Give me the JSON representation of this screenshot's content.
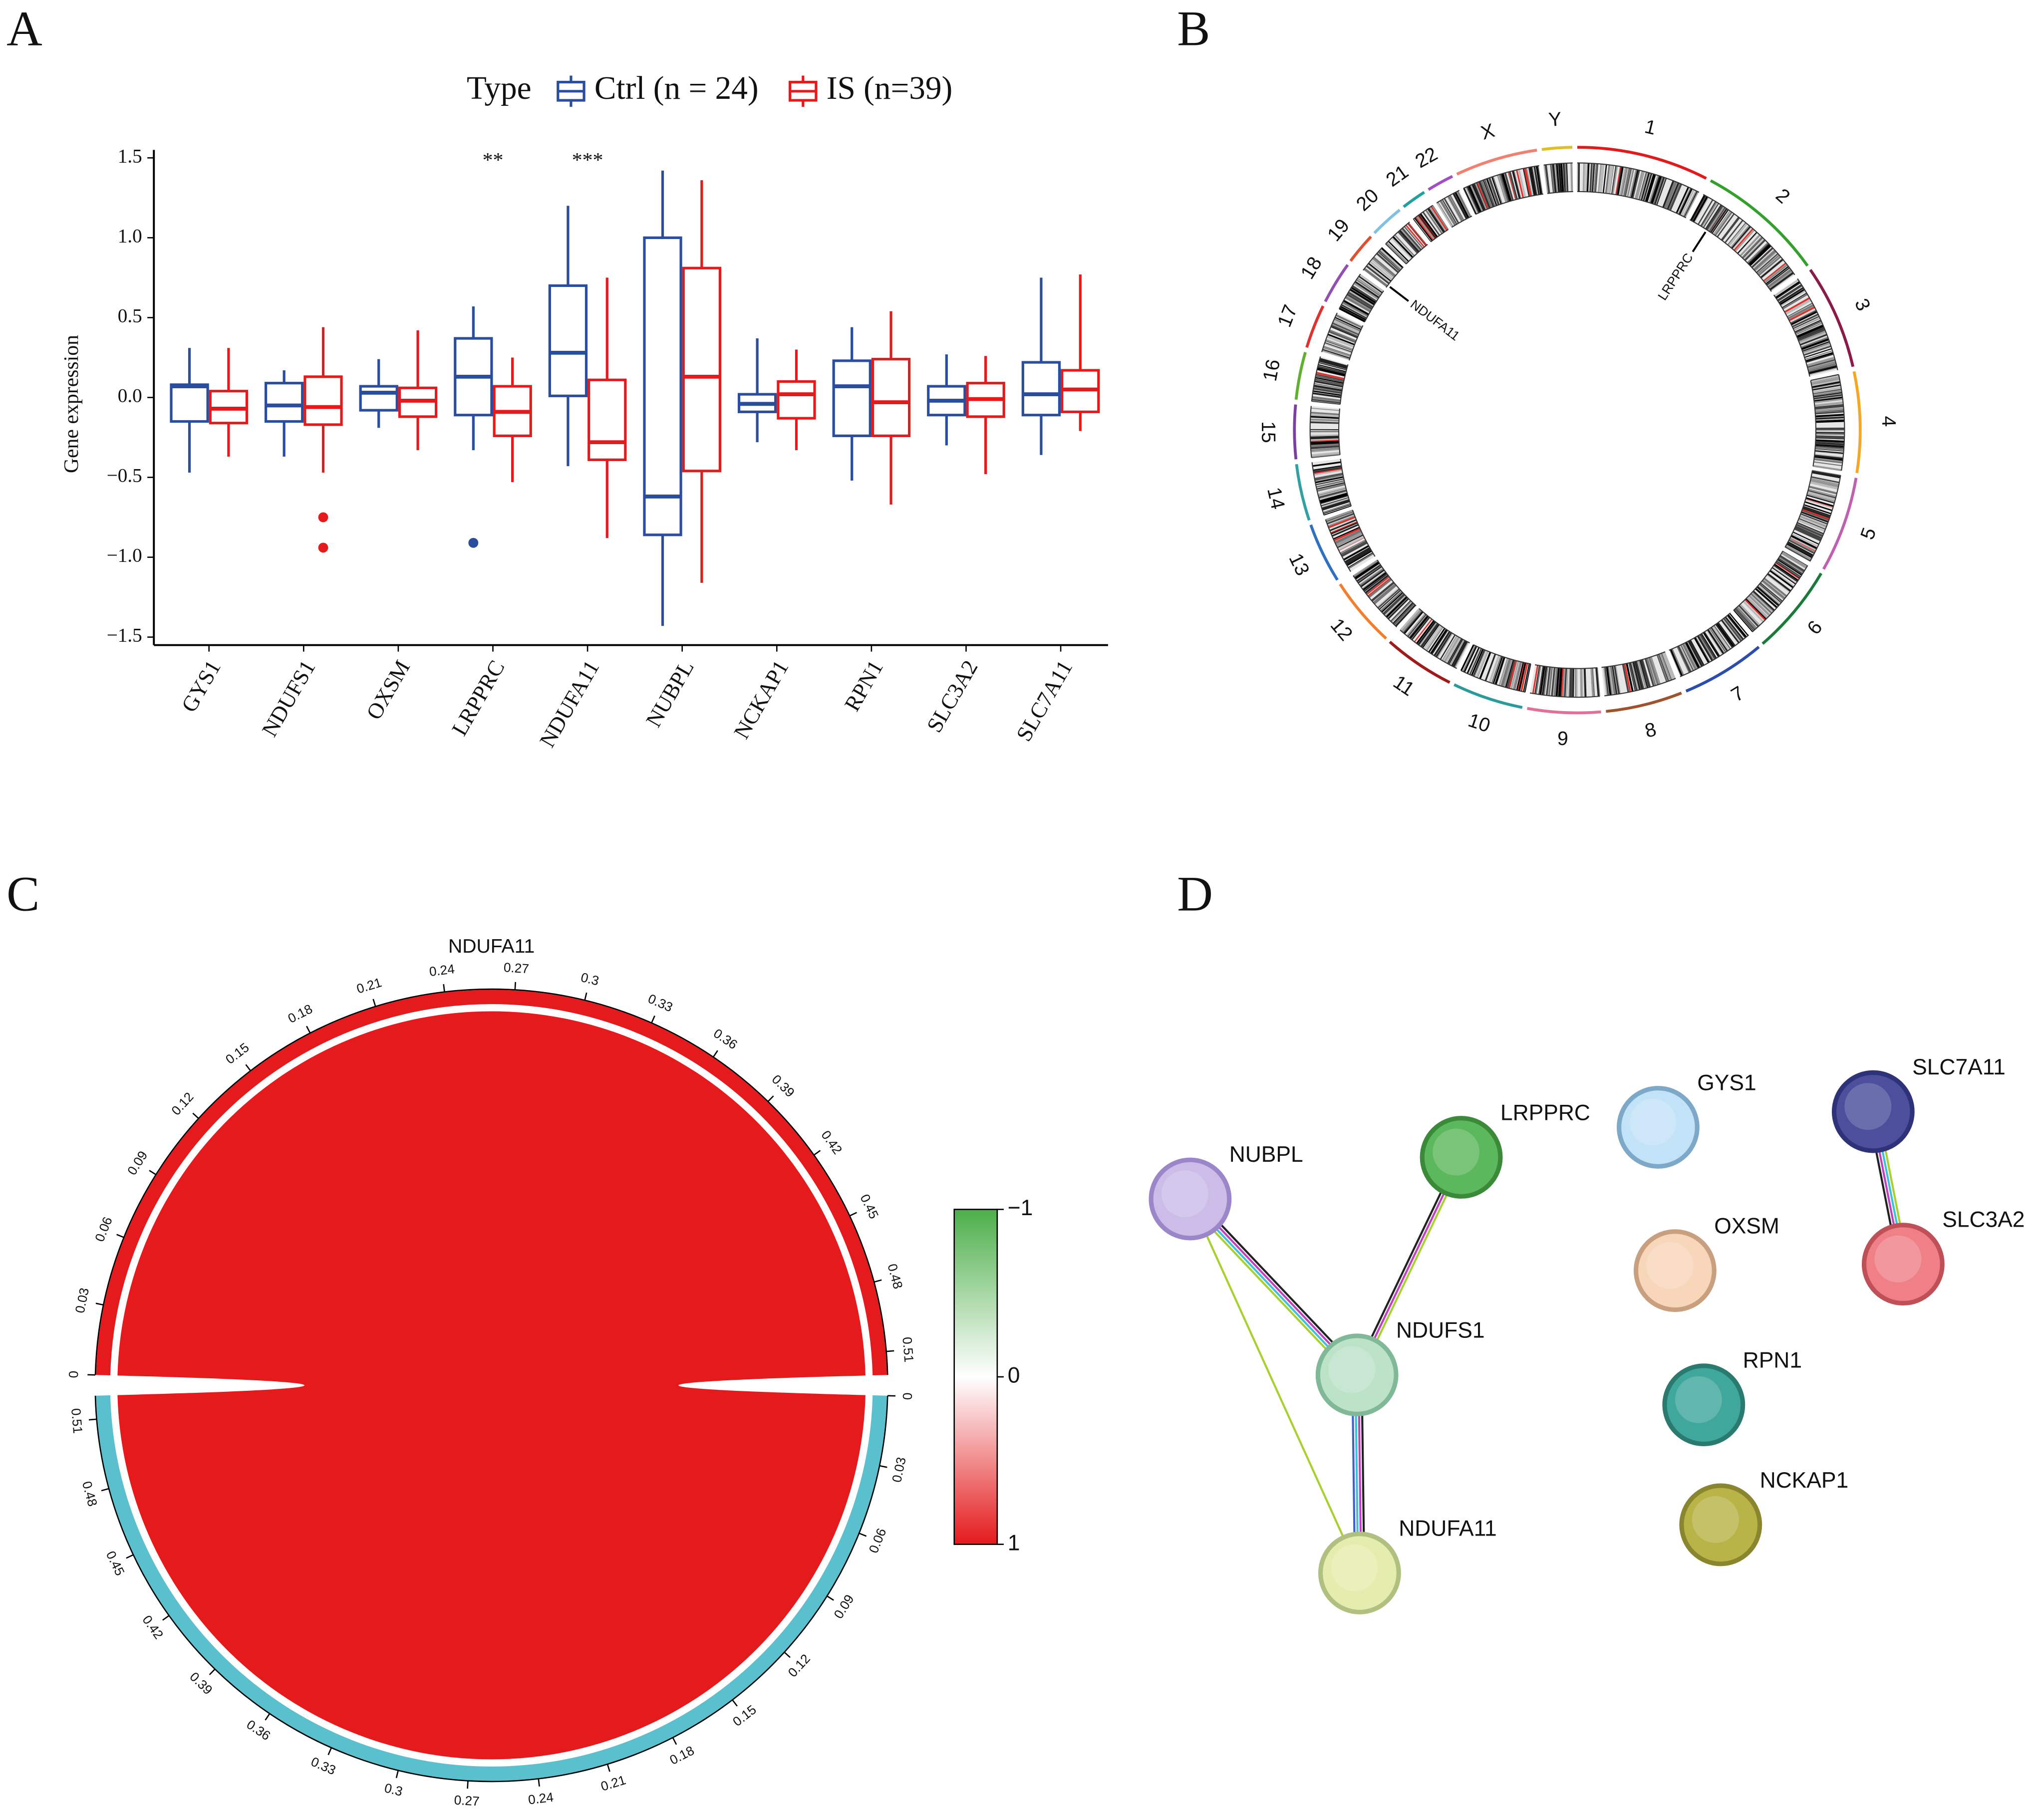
{
  "panels": [
    "A",
    "B",
    "C",
    "D"
  ],
  "chart_data": [
    {
      "type": "box",
      "y_label": "Gene expression",
      "legend_title": "Type",
      "categories": [
        "GYS1",
        "NDUFS1",
        "OXSM",
        "LRPPRC",
        "NDUFA11",
        "NUBPL",
        "NCKAP1",
        "RPN1",
        "SLC3A2",
        "SLC7A11"
      ],
      "significance": [
        null,
        null,
        null,
        "**",
        "***",
        null,
        null,
        null,
        null,
        null
      ],
      "series": [
        {
          "name": "Ctrl (n = 24)",
          "color": "#2a4d9e",
          "min": [
            -0.47,
            -0.37,
            -0.19,
            -0.33,
            -0.43,
            -1.43,
            -0.28,
            -0.52,
            -0.3,
            -0.36
          ],
          "q1": [
            -0.15,
            -0.15,
            -0.08,
            -0.11,
            0.01,
            -0.86,
            -0.09,
            -0.24,
            -0.11,
            -0.11
          ],
          "median": [
            0.07,
            -0.05,
            0.03,
            0.13,
            0.28,
            -0.62,
            -0.04,
            0.07,
            -0.02,
            0.02
          ],
          "q3": [
            0.08,
            0.09,
            0.07,
            0.37,
            0.7,
            1.0,
            0.02,
            0.23,
            0.07,
            0.22
          ],
          "max": [
            0.31,
            0.17,
            0.24,
            0.57,
            1.2,
            1.42,
            0.37,
            0.44,
            0.27,
            0.75
          ],
          "outliers": [
            [],
            [],
            [],
            [
              -0.91
            ],
            [],
            [],
            [],
            [],
            [],
            []
          ]
        },
        {
          "name": "IS (n=39)",
          "color": "#e41a1c",
          "min": [
            -0.37,
            -0.47,
            -0.33,
            -0.53,
            -0.88,
            -1.16,
            -0.33,
            -0.67,
            -0.48,
            -0.21
          ],
          "q1": [
            -0.16,
            -0.17,
            -0.12,
            -0.24,
            -0.39,
            -0.46,
            -0.13,
            -0.24,
            -0.12,
            -0.09
          ],
          "median": [
            -0.07,
            -0.06,
            -0.02,
            -0.09,
            -0.28,
            0.13,
            0.02,
            -0.03,
            -0.01,
            0.05
          ],
          "q3": [
            0.04,
            0.13,
            0.06,
            0.07,
            0.11,
            0.81,
            0.1,
            0.24,
            0.09,
            0.17
          ],
          "max": [
            0.31,
            0.44,
            0.42,
            0.25,
            0.75,
            1.36,
            0.3,
            0.54,
            0.26,
            0.77
          ],
          "outliers": [
            [],
            [
              -0.75,
              -0.94
            ],
            [],
            [],
            [],
            [],
            [],
            [],
            [],
            []
          ]
        }
      ],
      "ylim": [
        -1.55,
        1.55
      ],
      "yticks": [
        {
          "value": -1.5,
          "label": "−1.5"
        },
        {
          "value": -1,
          "label": "−1.0"
        },
        {
          "value": -0.5,
          "label": "−0.5"
        },
        {
          "value": 0,
          "label": "0.0"
        },
        0.5,
        {
          "value": 1,
          "label": "1.0"
        },
        1.5
      ]
    },
    {
      "type": "circos",
      "chromosomes": [
        "1",
        "2",
        "3",
        "4",
        "5",
        "6",
        "7",
        "8",
        "9",
        "10",
        "11",
        "12",
        "13",
        "14",
        "15",
        "16",
        "17",
        "18",
        "19",
        "20",
        "21",
        "22",
        "X",
        "Y"
      ],
      "lengths": [
        249,
        242,
        198,
        190,
        181,
        171,
        159,
        145,
        138,
        134,
        135,
        133,
        114,
        107,
        102,
        90,
        83,
        80,
        59,
        64,
        47,
        51,
        156,
        57
      ],
      "colors": [
        "#e31a1c",
        "#33a02c",
        "#8b1a4a",
        "#f5a623",
        "#c060b0",
        "#1a7a3a",
        "#2b4cb0",
        "#a0522d",
        "#e0709a",
        "#2a9a9a",
        "#a01a1a",
        "#f08030",
        "#3070c0",
        "#30a0a0",
        "#7a40a0",
        "#60b030",
        "#e03030",
        "#9050b0",
        "#e05030",
        "#80c0e0",
        "#20a0a0",
        "#a050c0",
        "#f08070",
        "#e0c020"
      ],
      "genes": [
        {
          "name": "LRPPRC",
          "chromosome": "2",
          "position": 44
        },
        {
          "name": "NDUFA11",
          "chromosome": "19",
          "position": 6
        }
      ]
    },
    {
      "type": "chord",
      "sectors": [
        {
          "name": "NDUFA11",
          "color": "#e41a1c",
          "value": 0.52
        },
        {
          "name": "LRPPRC",
          "color": "#5bc0ce",
          "value": 0.52
        }
      ],
      "link": {
        "value": 0.52,
        "color": "#e41a1c"
      },
      "ticks": [
        0,
        0.03,
        0.06,
        0.09,
        0.12,
        0.15,
        0.18,
        0.21,
        0.24,
        0.27,
        0.3,
        0.33,
        0.36,
        0.39,
        0.42,
        0.45,
        0.48,
        0.51
      ],
      "colorbar": {
        "lim": [
          -1,
          1
        ],
        "ticks": [
          {
            "value": -1,
            "label": "−1"
          },
          0,
          1
        ],
        "colors": [
          "#4daf4a",
          "#ffffff",
          "#e41a1c"
        ]
      }
    }
  ],
  "network": {
    "nodes": [
      {
        "label": "NUBPL",
        "color": "#cbbce8",
        "border": "#9a86c8"
      },
      {
        "label": "LRPPRC",
        "color": "#5cb85c",
        "border": "#3a8a3a"
      },
      {
        "label": "GYS1",
        "color": "#c2e2f8",
        "border": "#7ea8c8"
      },
      {
        "label": "SLC7A11",
        "color": "#4b4f9c",
        "border": "#2e3278"
      },
      {
        "label": "OXSM",
        "color": "#f8d6ba",
        "border": "#c8a080"
      },
      {
        "label": "SLC3A2",
        "color": "#f08088",
        "border": "#c05058"
      },
      {
        "label": "NDUFS1",
        "color": "#bce2c8",
        "border": "#80b898"
      },
      {
        "label": "RPN1",
        "color": "#3fa79c",
        "border": "#2a7a70"
      },
      {
        "label": "NCKAP1",
        "color": "#b8b448",
        "border": "#8a8630"
      },
      {
        "label": "NDUFA11",
        "color": "#e4edae",
        "border": "#b0c080"
      }
    ],
    "edges": [
      {
        "source": 0,
        "target": 6,
        "colors": [
          "#222222",
          "#c040c0",
          "#3fbfd8",
          "#a8d030"
        ]
      },
      {
        "source": 0,
        "target": 9,
        "colors": [
          "#a8d030"
        ]
      },
      {
        "source": 1,
        "target": 6,
        "colors": [
          "#a8d030",
          "#c040c0",
          "#222222"
        ]
      },
      {
        "source": 6,
        "target": 9,
        "colors": [
          "#222222",
          "#c040c0",
          "#3fbfd8",
          "#4060d0"
        ]
      },
      {
        "source": 3,
        "target": 5,
        "colors": [
          "#a8d030",
          "#3fbfd8",
          "#c040c0",
          "#222222"
        ]
      }
    ]
  }
}
